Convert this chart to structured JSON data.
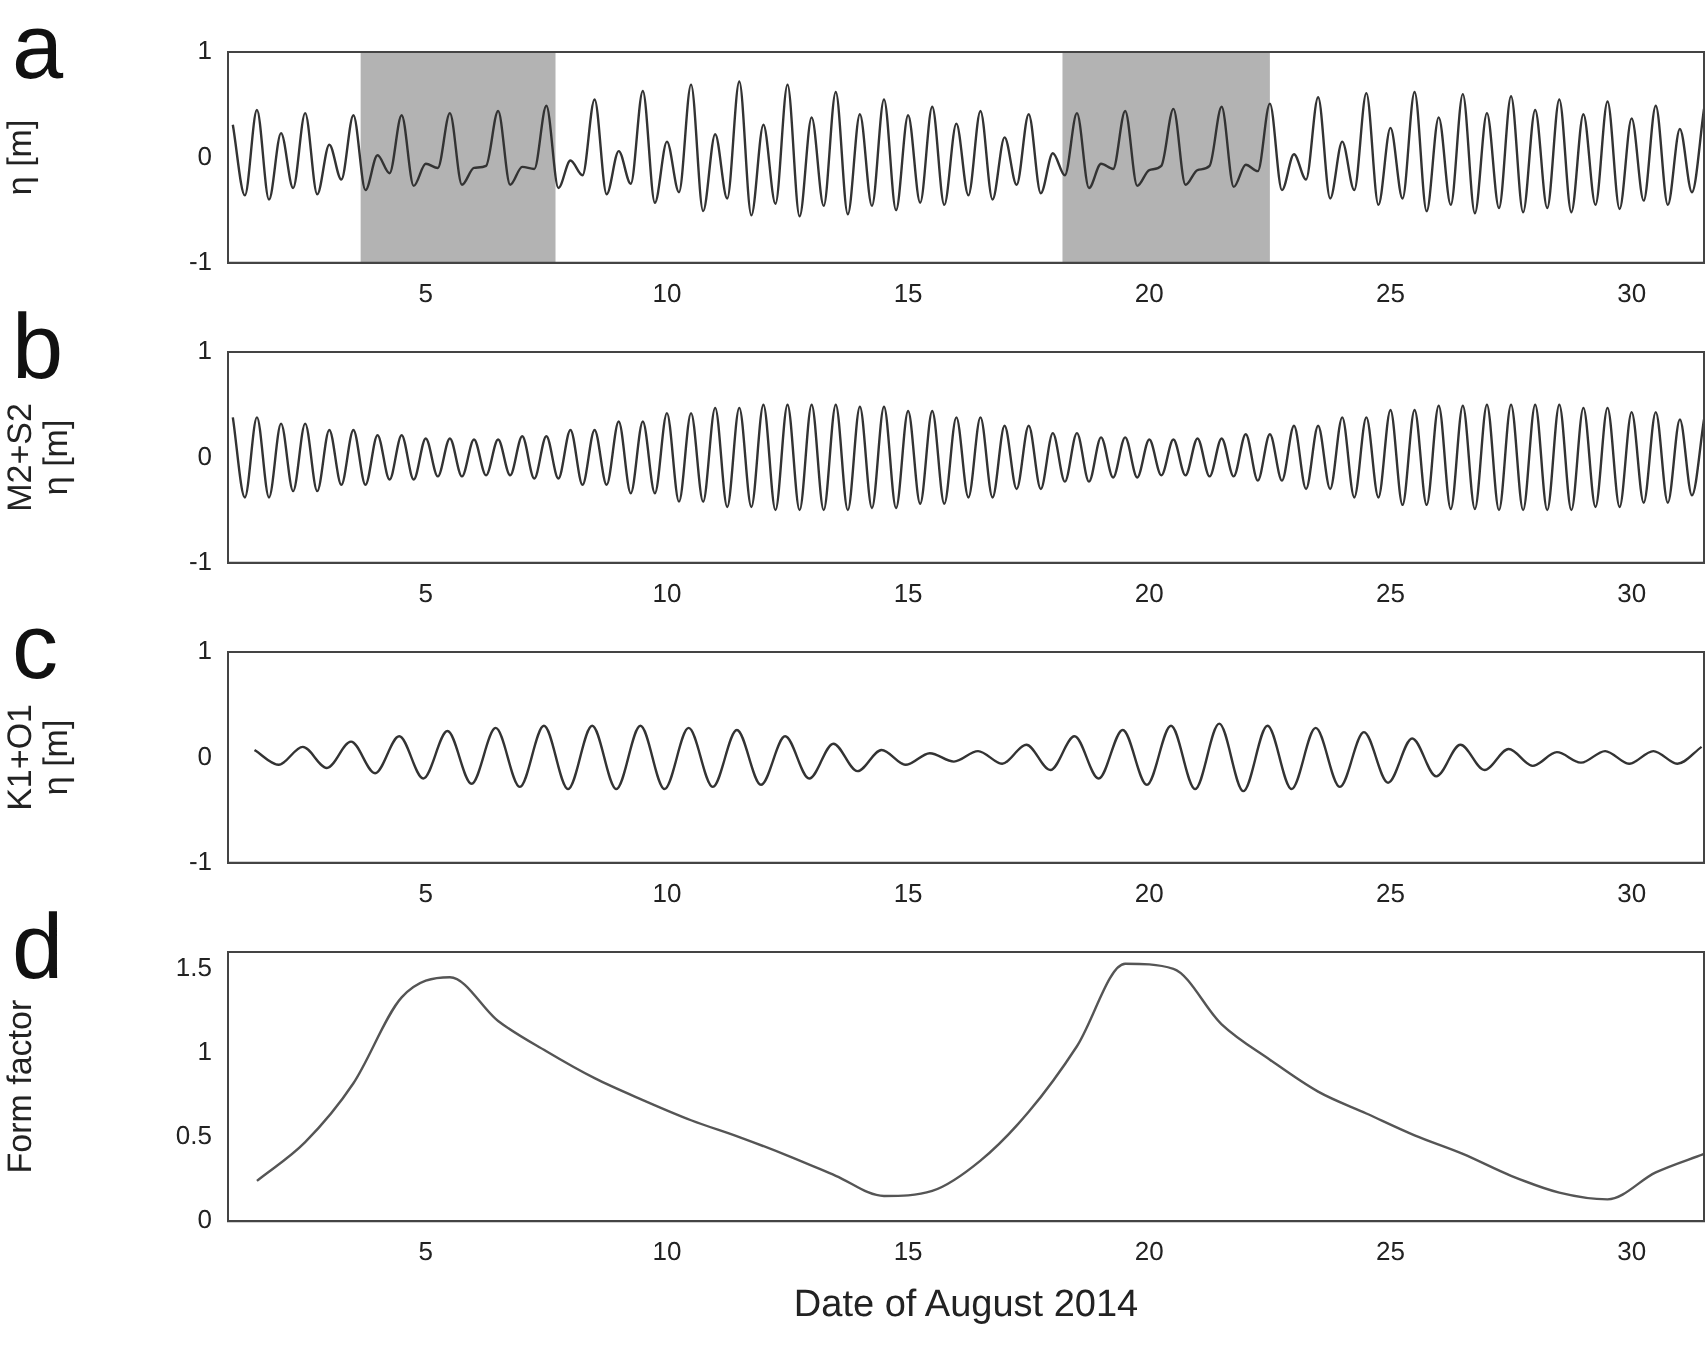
{
  "chart_data": [
    {
      "type": "line",
      "annotations": [
        "a"
      ],
      "ylabel": "η [m]",
      "xlim": [
        0.9,
        31.5
      ],
      "xticks": [
        5,
        10,
        15,
        20,
        25,
        30
      ],
      "ylim": [
        -1,
        1
      ],
      "yticks": [
        -1,
        0,
        1
      ],
      "grid": false,
      "legend": false,
      "color": "#333333",
      "bands": [
        {
          "axis": "x",
          "from": 3.65,
          "to": 7.69,
          "color": "#b3b3b3"
        },
        {
          "axis": "x",
          "from": 18.2,
          "to": 22.5,
          "color": "#b3b3b3"
        }
      ],
      "x": [
        1,
        1.25,
        1.5,
        1.75,
        2,
        2.25,
        2.5,
        2.75,
        3,
        3.25,
        3.5,
        3.75,
        4,
        4.25,
        4.5,
        4.75,
        5,
        5.25,
        5.5,
        5.75,
        6,
        6.25,
        6.5,
        6.75,
        7,
        7.25,
        7.5,
        7.75,
        8,
        8.25,
        8.5,
        8.75,
        9,
        9.25,
        9.5,
        9.75,
        10,
        10.25,
        10.5,
        10.75,
        11,
        11.25,
        11.5,
        11.75,
        12,
        12.25,
        12.5,
        12.75,
        13,
        13.25,
        13.5,
        13.75,
        14,
        14.25,
        14.5,
        14.75,
        15,
        15.25,
        15.5,
        15.75,
        16,
        16.25,
        16.5,
        16.75,
        17,
        17.25,
        17.5,
        17.75,
        18,
        18.25,
        18.5,
        18.75,
        19,
        19.25,
        19.5,
        19.75,
        20,
        20.25,
        20.5,
        20.75,
        21,
        21.25,
        21.5,
        21.75,
        22,
        22.25,
        22.5,
        22.75,
        23,
        23.25,
        23.5,
        23.75,
        24,
        24.25,
        24.5,
        24.75,
        25,
        25.25,
        25.5,
        25.75,
        26,
        26.25,
        26.5,
        26.75,
        27,
        27.25,
        27.5,
        27.75,
        28,
        28.25,
        28.5,
        28.75,
        29,
        29.25,
        29.5,
        29.75,
        30,
        30.25,
        30.5,
        30.75,
        31,
        31.25,
        31.5
      ],
      "values": [
        0.31,
        -0.36,
        0.45,
        -0.4,
        0.23,
        -0.29,
        0.42,
        -0.35,
        0.12,
        -0.21,
        0.4,
        -0.31,
        0.02,
        -0.15,
        0.4,
        -0.27,
        -0.06,
        -0.1,
        0.42,
        -0.26,
        -0.1,
        -0.08,
        0.44,
        -0.26,
        -0.09,
        -0.11,
        0.49,
        -0.29,
        -0.03,
        -0.17,
        0.55,
        -0.35,
        0.06,
        -0.25,
        0.63,
        -0.43,
        0.15,
        -0.33,
        0.69,
        -0.51,
        0.22,
        -0.39,
        0.72,
        -0.55,
        0.31,
        -0.44,
        0.69,
        -0.56,
        0.38,
        -0.46,
        0.62,
        -0.54,
        0.41,
        -0.46,
        0.55,
        -0.5,
        0.4,
        -0.43,
        0.48,
        -0.45,
        0.32,
        -0.36,
        0.44,
        -0.4,
        0.19,
        -0.26,
        0.41,
        -0.34,
        0.04,
        -0.17,
        0.42,
        -0.29,
        -0.06,
        -0.11,
        0.44,
        -0.27,
        -0.12,
        -0.08,
        0.46,
        -0.26,
        -0.12,
        -0.08,
        0.48,
        -0.28,
        -0.07,
        -0.13,
        0.51,
        -0.31,
        0.03,
        -0.21,
        0.57,
        -0.39,
        0.15,
        -0.31,
        0.61,
        -0.45,
        0.28,
        -0.39,
        0.62,
        -0.51,
        0.38,
        -0.45,
        0.6,
        -0.53,
        0.42,
        -0.48,
        0.58,
        -0.52,
        0.45,
        -0.48,
        0.55,
        -0.52,
        0.41,
        -0.45,
        0.53,
        -0.49,
        0.37,
        -0.41,
        0.49,
        -0.45,
        0.27,
        -0.33,
        0.46
      ]
    },
    {
      "type": "line",
      "annotations": [
        "b"
      ],
      "ylabel": "M2+S2\nη [m]",
      "xlim": [
        0.9,
        31.5
      ],
      "xticks": [
        5,
        10,
        15,
        20,
        25,
        30
      ],
      "ylim": [
        -1,
        1
      ],
      "yticks": [
        -1,
        0,
        1
      ],
      "grid": false,
      "legend": false,
      "color": "#333333",
      "x": [
        1,
        1.25,
        1.5,
        1.75,
        2,
        2.25,
        2.5,
        2.75,
        3,
        3.25,
        3.5,
        3.75,
        4,
        4.25,
        4.5,
        4.75,
        5,
        5.25,
        5.5,
        5.75,
        6,
        6.25,
        6.5,
        6.75,
        7,
        7.25,
        7.5,
        7.75,
        8,
        8.25,
        8.5,
        8.75,
        9,
        9.25,
        9.5,
        9.75,
        10,
        10.25,
        10.5,
        10.75,
        11,
        11.25,
        11.5,
        11.75,
        12,
        12.25,
        12.5,
        12.75,
        13,
        13.25,
        13.5,
        13.75,
        14,
        14.25,
        14.5,
        14.75,
        15,
        15.25,
        15.5,
        15.75,
        16,
        16.25,
        16.5,
        16.75,
        17,
        17.25,
        17.5,
        17.75,
        18,
        18.25,
        18.5,
        18.75,
        19,
        19.25,
        19.5,
        19.75,
        20,
        20.25,
        20.5,
        20.75,
        21,
        21.25,
        21.5,
        21.75,
        22,
        22.25,
        22.5,
        22.75,
        23,
        23.25,
        23.5,
        23.75,
        24,
        24.25,
        24.5,
        24.75,
        25,
        25.25,
        25.5,
        25.75,
        26,
        26.25,
        26.5,
        26.75,
        27,
        27.25,
        27.5,
        27.75,
        28,
        28.25,
        28.5,
        28.75,
        29,
        29.25,
        29.5,
        29.75,
        30,
        30.25,
        30.5,
        30.75,
        31,
        31.25,
        31.5
      ],
      "values": [
        0.38,
        -0.38,
        0.38,
        -0.38,
        0.32,
        -0.32,
        0.32,
        -0.32,
        0.26,
        -0.26,
        0.26,
        -0.26,
        0.21,
        -0.21,
        0.21,
        -0.21,
        0.18,
        -0.18,
        0.18,
        -0.18,
        0.17,
        -0.17,
        0.17,
        -0.17,
        0.2,
        -0.2,
        0.2,
        -0.2,
        0.26,
        -0.26,
        0.26,
        -0.26,
        0.34,
        -0.34,
        0.34,
        -0.34,
        0.42,
        -0.42,
        0.42,
        -0.42,
        0.47,
        -0.47,
        0.47,
        -0.47,
        0.5,
        -0.5,
        0.5,
        -0.5,
        0.5,
        -0.5,
        0.5,
        -0.5,
        0.48,
        -0.48,
        0.48,
        -0.48,
        0.44,
        -0.44,
        0.44,
        -0.44,
        0.38,
        -0.38,
        0.38,
        -0.38,
        0.3,
        -0.3,
        0.3,
        -0.3,
        0.23,
        -0.23,
        0.23,
        -0.23,
        0.19,
        -0.19,
        0.19,
        -0.19,
        0.17,
        -0.17,
        0.17,
        -0.17,
        0.18,
        -0.18,
        0.18,
        -0.18,
        0.22,
        -0.22,
        0.22,
        -0.22,
        0.3,
        -0.3,
        0.3,
        -0.3,
        0.38,
        -0.38,
        0.38,
        -0.38,
        0.45,
        -0.45,
        0.45,
        -0.45,
        0.49,
        -0.49,
        0.49,
        -0.49,
        0.5,
        -0.5,
        0.5,
        -0.5,
        0.5,
        -0.5,
        0.5,
        -0.5,
        0.47,
        -0.47,
        0.47,
        -0.47,
        0.43,
        -0.43,
        0.43,
        -0.43,
        0.36,
        -0.36,
        0.36
      ]
    },
    {
      "type": "line",
      "annotations": [
        "c"
      ],
      "ylabel": "K1+O1\nη [m]",
      "xlim": [
        0.9,
        31.5
      ],
      "xticks": [
        5,
        10,
        15,
        20,
        25,
        30
      ],
      "ylim": [
        -1,
        1
      ],
      "yticks": [
        -1,
        0,
        1
      ],
      "grid": false,
      "legend": false,
      "color": "#333333",
      "x": [
        1.45,
        1.95,
        2.45,
        2.95,
        3.45,
        3.95,
        4.45,
        4.95,
        5.45,
        5.95,
        6.45,
        6.95,
        7.45,
        7.95,
        8.45,
        8.95,
        9.45,
        9.95,
        10.45,
        10.95,
        11.45,
        11.95,
        12.45,
        12.95,
        13.45,
        13.95,
        14.45,
        14.95,
        15.45,
        15.95,
        16.45,
        16.95,
        17.45,
        17.95,
        18.45,
        18.95,
        19.45,
        19.95,
        20.45,
        20.95,
        21.45,
        21.95,
        22.45,
        22.95,
        23.45,
        23.95,
        24.45,
        24.95,
        25.45,
        25.95,
        26.45,
        26.95,
        27.45,
        27.95,
        28.45,
        28.95,
        29.45,
        29.95,
        30.45,
        30.95,
        31.45
      ],
      "values": [
        0.07,
        -0.07,
        0.1,
        -0.1,
        0.15,
        -0.15,
        0.2,
        -0.2,
        0.25,
        -0.25,
        0.28,
        -0.28,
        0.3,
        -0.3,
        0.3,
        -0.3,
        0.3,
        -0.3,
        0.28,
        -0.28,
        0.26,
        -0.26,
        0.2,
        -0.2,
        0.13,
        -0.13,
        0.07,
        -0.07,
        0.04,
        -0.04,
        0.06,
        -0.06,
        0.12,
        -0.12,
        0.2,
        -0.2,
        0.26,
        -0.26,
        0.3,
        -0.3,
        0.32,
        -0.32,
        0.3,
        -0.3,
        0.28,
        -0.28,
        0.24,
        -0.24,
        0.18,
        -0.18,
        0.12,
        -0.12,
        0.08,
        -0.08,
        0.05,
        -0.05,
        0.06,
        -0.06,
        0.06,
        -0.06,
        0.1
      ]
    },
    {
      "type": "line",
      "annotations": [
        "d"
      ],
      "ylabel": "Form factor",
      "xlabel": "Date of August 2014",
      "xlim": [
        0.9,
        31.5
      ],
      "xticks": [
        5,
        10,
        15,
        20,
        25,
        30
      ],
      "ylim": [
        0,
        1.6
      ],
      "yticks": [
        0,
        0.5,
        1,
        1.5
      ],
      "grid": false,
      "legend": false,
      "color": "#555555",
      "x": [
        1.5,
        2.5,
        3.5,
        4.5,
        5.5,
        6.5,
        7.5,
        8.5,
        9.5,
        10.5,
        11.5,
        12.5,
        13.5,
        14.5,
        15.5,
        16.5,
        17.5,
        18.5,
        19.5,
        20.5,
        21.5,
        22.5,
        23.5,
        24.5,
        25.5,
        26.5,
        27.5,
        28.5,
        29.5,
        30.5,
        31.5
      ],
      "values": [
        0.24,
        0.47,
        0.82,
        1.33,
        1.45,
        1.19,
        1.01,
        0.85,
        0.72,
        0.6,
        0.5,
        0.39,
        0.27,
        0.15,
        0.18,
        0.36,
        0.65,
        1.04,
        1.53,
        1.5,
        1.17,
        0.96,
        0.77,
        0.64,
        0.51,
        0.4,
        0.27,
        0.17,
        0.13,
        0.29,
        0.4
      ]
    }
  ]
}
